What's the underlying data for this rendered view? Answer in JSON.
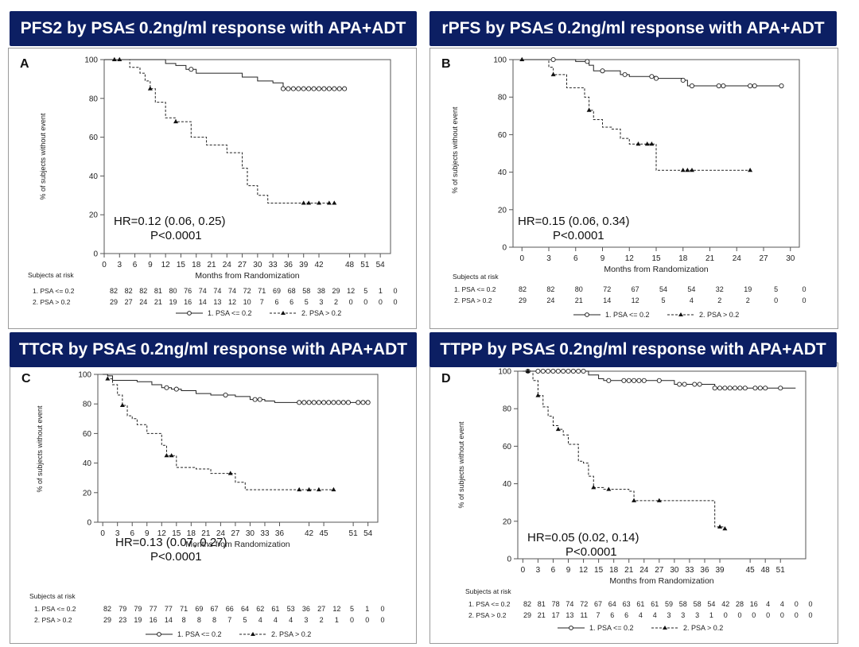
{
  "chart_data": [
    {
      "type": "line",
      "letter": "A",
      "title": "PFS2 by PSA≤ 0.2ng/ml response with APA+ADT",
      "xlabel": "Months from Randomization",
      "ylabel": "% of subjects without event",
      "ylim": [
        0,
        100
      ],
      "xlim": [
        0,
        56
      ],
      "yticks": [
        0,
        20,
        40,
        60,
        80,
        100
      ],
      "xticks": [
        0,
        3,
        6,
        9,
        12,
        15,
        18,
        21,
        24,
        27,
        30,
        33,
        36,
        39,
        42,
        48,
        51,
        54
      ],
      "hr": "HR=0.12 (0.06, 0.25)",
      "p": "P<0.0001",
      "risk_title": "Subjects at risk",
      "series": [
        {
          "name": "1. PSA <= 0.2",
          "style": "solid",
          "marker": "circle",
          "x": [
            0,
            9,
            12,
            14,
            16,
            18,
            24,
            27,
            30,
            33,
            35,
            47
          ],
          "y": [
            100,
            100,
            98,
            97,
            95,
            93,
            93,
            91,
            89,
            88,
            85,
            85
          ],
          "censor_x": [
            17,
            35,
            36,
            37,
            38,
            39,
            40,
            41,
            42,
            43,
            44,
            45,
            46,
            47
          ],
          "risk": [
            "82",
            "82",
            "82",
            "81",
            "80",
            "76",
            "74",
            "74",
            "74",
            "72",
            "71",
            "69",
            "68",
            "58",
            "38",
            "29",
            "12",
            "5",
            "1",
            "0"
          ]
        },
        {
          "name": "2. PSA > 0.2",
          "style": "dashed",
          "marker": "triangle",
          "x": [
            0,
            3,
            5,
            7,
            8,
            9,
            10,
            12,
            14,
            17,
            20,
            24,
            27,
            28,
            30,
            32,
            44
          ],
          "y": [
            100,
            100,
            96,
            93,
            89,
            85,
            78,
            70,
            68,
            60,
            56,
            52,
            44,
            35,
            30,
            26,
            26
          ],
          "censor_x": [
            2,
            3,
            9,
            14,
            39,
            40,
            42,
            44,
            45
          ],
          "risk": [
            "29",
            "27",
            "24",
            "21",
            "19",
            "16",
            "14",
            "13",
            "12",
            "10",
            "7",
            "6",
            "6",
            "5",
            "3",
            "2",
            "0",
            "0",
            "0",
            "0"
          ]
        }
      ]
    },
    {
      "type": "line",
      "letter": "B",
      "title": "rPFS by PSA≤ 0.2ng/ml response with APA+ADT",
      "xlabel": "Months from Randomization",
      "ylabel": "% of subjects without event",
      "ylim": [
        0,
        100
      ],
      "xlim": [
        -1,
        31
      ],
      "yticks": [
        0,
        20,
        40,
        60,
        80,
        100
      ],
      "xticks": [
        0,
        3,
        6,
        9,
        12,
        15,
        18,
        21,
        24,
        27,
        30
      ],
      "hr": "HR=0.15 (0.06, 0.34)",
      "p": "P<0.0001",
      "risk_title": "Subjects at risk",
      "series": [
        {
          "name": "1. PSA <= 0.2",
          "style": "solid",
          "marker": "circle",
          "x": [
            0,
            3,
            6,
            7,
            7.5,
            8,
            11,
            12,
            15,
            18,
            18.5,
            29
          ],
          "y": [
            100,
            100,
            99,
            99,
            97,
            94,
            92,
            91,
            90,
            89,
            86,
            86
          ],
          "censor_x": [
            3.5,
            7.3,
            9,
            11.5,
            14.5,
            15,
            18,
            19,
            22,
            22.5,
            25.5,
            26,
            29
          ],
          "risk": [
            "82",
            "82",
            "80",
            "72",
            "67",
            "54",
            "54",
            "32",
            "19",
            "5",
            "0"
          ]
        },
        {
          "name": "2. PSA > 0.2",
          "style": "dashed",
          "marker": "triangle",
          "x": [
            0,
            2,
            3,
            3.5,
            5,
            6,
            7,
            7.5,
            8,
            9,
            10,
            11,
            12,
            13,
            14.5,
            15,
            25.5
          ],
          "y": [
            100,
            100,
            96,
            92,
            85,
            85,
            80,
            73,
            68,
            64,
            63,
            58,
            55,
            55,
            55,
            41,
            41
          ],
          "censor_x": [
            0,
            3.5,
            7.5,
            13,
            14,
            14.5,
            18,
            18.5,
            19,
            25.5
          ],
          "risk": [
            "29",
            "24",
            "21",
            "14",
            "12",
            "5",
            "4",
            "2",
            "2",
            "0",
            "0"
          ]
        }
      ]
    },
    {
      "type": "line",
      "letter": "C",
      "title": "TTCR by PSA≤ 0.2ng/ml response with APA+ADT",
      "xlabel": "Months from Randomization",
      "ylabel": "% of subjects without event",
      "ylim": [
        0,
        100
      ],
      "xlim": [
        -1,
        56
      ],
      "yticks": [
        0,
        20,
        40,
        60,
        80,
        100
      ],
      "xticks": [
        0,
        3,
        6,
        9,
        12,
        15,
        18,
        21,
        24,
        27,
        30,
        33,
        36,
        42,
        45,
        51,
        54
      ],
      "hr": "HR=0.13 (0.07, 0.27)",
      "p": "P<0.0001",
      "risk_title": "Subjects at risk",
      "series": [
        {
          "name": "1. PSA <= 0.2",
          "style": "solid",
          "marker": "circle",
          "x": [
            0,
            1,
            2,
            7,
            10,
            12,
            14,
            16,
            19,
            22,
            27,
            30,
            33,
            35,
            54
          ],
          "y": [
            100,
            99,
            96,
            95,
            93,
            91,
            90,
            89,
            87,
            86,
            85,
            83,
            82,
            81,
            81
          ],
          "censor_x": [
            13,
            15,
            25,
            31,
            32,
            40,
            41,
            42,
            43,
            44,
            45,
            46,
            47,
            48,
            49,
            50,
            52,
            53,
            54
          ],
          "risk": [
            "82",
            "79",
            "79",
            "77",
            "77",
            "71",
            "69",
            "67",
            "66",
            "64",
            "62",
            "61",
            "53",
            "36",
            "27",
            "12",
            "5",
            "1",
            "0"
          ]
        },
        {
          "name": "2. PSA > 0.2",
          "style": "dashed",
          "marker": "triangle",
          "x": [
            0,
            1,
            2,
            3,
            4,
            5,
            6,
            7,
            9,
            12,
            13,
            14,
            15,
            19,
            22,
            27,
            29,
            47
          ],
          "y": [
            100,
            97,
            93,
            86,
            79,
            72,
            70,
            66,
            60,
            52,
            45,
            45,
            37,
            36,
            33,
            27,
            22,
            22
          ],
          "censor_x": [
            1,
            4,
            13,
            14,
            26,
            40,
            42,
            44,
            47
          ],
          "risk": [
            "29",
            "23",
            "19",
            "16",
            "14",
            "8",
            "8",
            "8",
            "7",
            "5",
            "4",
            "4",
            "4",
            "3",
            "2",
            "1",
            "0",
            "0",
            "0"
          ]
        }
      ]
    },
    {
      "type": "line",
      "letter": "D",
      "title": "TTPP by PSA≤ 0.2ng/ml response with APA+ADT",
      "xlabel": "Months from Randomization",
      "ylabel": "% of subjects without event",
      "ylim": [
        0,
        100
      ],
      "xlim": [
        -1,
        56
      ],
      "yticks": [
        0,
        20,
        40,
        60,
        80,
        100
      ],
      "xticks": [
        0,
        3,
        6,
        9,
        12,
        15,
        18,
        21,
        24,
        27,
        30,
        33,
        36,
        39,
        45,
        48,
        51
      ],
      "hr": "HR=0.05 (0.02, 0.14)",
      "p": "P<0.0001",
      "risk_title": "Subjects at risk",
      "series": [
        {
          "name": "1. PSA <= 0.2",
          "style": "solid",
          "marker": "circle",
          "x": [
            0,
            12,
            13,
            15,
            16,
            29,
            30,
            37,
            38,
            54
          ],
          "y": [
            100,
            100,
            98,
            96,
            95,
            95,
            93,
            93,
            91,
            91
          ],
          "censor_x": [
            1,
            3,
            4,
            5,
            6,
            7,
            8,
            9,
            10,
            11,
            12,
            17,
            20,
            21,
            22,
            23,
            24,
            27,
            31,
            32,
            34,
            35,
            38,
            39,
            40,
            41,
            42,
            43,
            44,
            46,
            47,
            48,
            51
          ],
          "risk": [
            "82",
            "81",
            "78",
            "74",
            "72",
            "67",
            "64",
            "63",
            "61",
            "61",
            "59",
            "58",
            "58",
            "54",
            "42",
            "28",
            "16",
            "4",
            "4",
            "0",
            "0"
          ]
        },
        {
          "name": "2. PSA > 0.2",
          "style": "dashed",
          "marker": "triangle",
          "x": [
            0,
            1,
            2,
            3,
            4,
            5,
            6,
            7,
            8,
            9,
            11,
            12,
            13,
            14,
            16,
            21,
            22,
            37,
            38,
            40
          ],
          "y": [
            100,
            100,
            95,
            87,
            81,
            76,
            71,
            69,
            66,
            61,
            52,
            51,
            44,
            38,
            37,
            36,
            31,
            31,
            17,
            16
          ],
          "censor_x": [
            1,
            3,
            7,
            14,
            17,
            22,
            27,
            39,
            40
          ],
          "risk": [
            "29",
            "21",
            "17",
            "13",
            "11",
            "7",
            "6",
            "6",
            "4",
            "4",
            "3",
            "3",
            "3",
            "1",
            "0",
            "0",
            "0",
            "0",
            "0",
            "0",
            "0"
          ]
        }
      ]
    }
  ]
}
